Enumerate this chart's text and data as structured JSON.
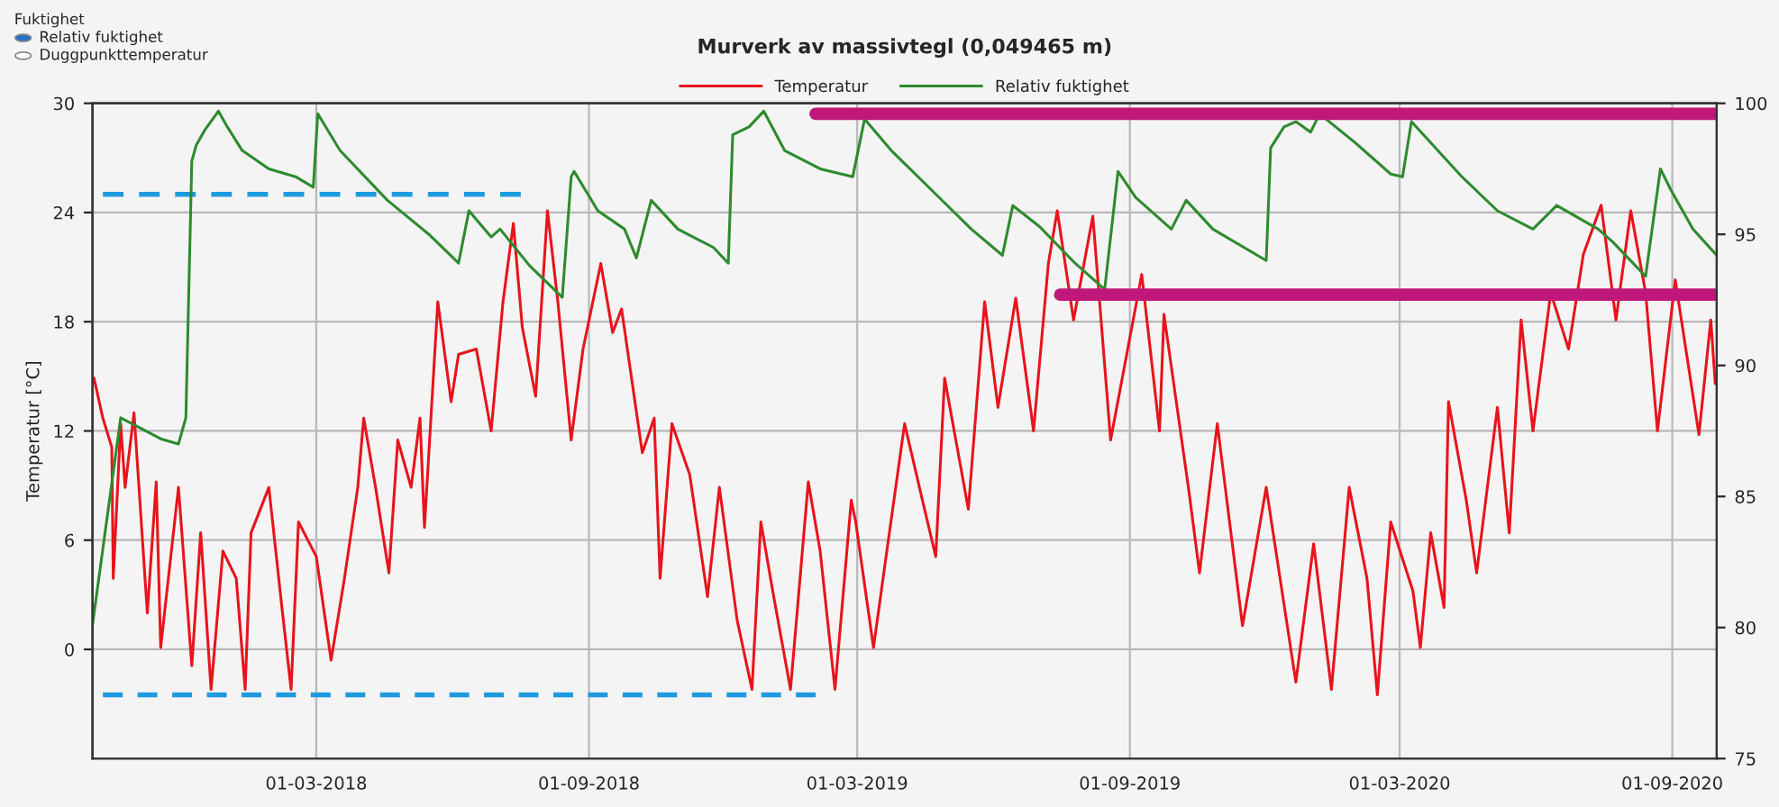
{
  "chart_data": {
    "type": "line",
    "title": "Murverk av massivtegl (0,049465 m)",
    "ylabel": "Temperatur [°C]",
    "annotations": [
      "Fuktighet",
      "Relativ fuktighet",
      "Duggpunkttemperatur"
    ],
    "xlim": [
      "2017-10-01",
      "2020-10-01"
    ],
    "xticks": [
      {
        "value": "2018-03-01",
        "label": "01-03-2018"
      },
      {
        "value": "2018-09-01",
        "label": "01-09-2018"
      },
      {
        "value": "2019-03-01",
        "label": "01-03-2019"
      },
      {
        "value": "2019-09-01",
        "label": "01-09-2019"
      },
      {
        "value": "2020-03-01",
        "label": "01-03-2020"
      },
      {
        "value": "2020-09-01",
        "label": "01-09-2020"
      }
    ],
    "ylim": [
      -6,
      30
    ],
    "yticks": [
      0,
      6,
      12,
      18,
      24,
      30
    ],
    "y2lim": [
      75,
      100
    ],
    "y2ticks": [
      75,
      80,
      85,
      90,
      95,
      100
    ],
    "grid": true,
    "legend": "top",
    "series": [
      {
        "name": "Temperatur",
        "color": "#e8141c",
        "x": [
          "2017-10-02",
          "2017-10-08",
          "2017-10-14",
          "2017-10-15",
          "2017-10-20",
          "2017-10-23",
          "2017-10-29",
          "2017-11-07",
          "2017-11-13",
          "2017-11-16",
          "2017-11-28",
          "2017-12-07",
          "2017-12-13",
          "2017-12-20",
          "2017-12-28",
          "2018-01-06",
          "2018-01-12",
          "2018-01-16",
          "2018-01-28",
          "2018-02-05",
          "2018-02-12",
          "2018-02-17",
          "2018-03-01",
          "2018-03-11",
          "2018-03-20",
          "2018-03-29",
          "2018-04-02",
          "2018-04-10",
          "2018-04-19",
          "2018-04-25",
          "2018-05-04",
          "2018-05-10",
          "2018-05-13",
          "2018-05-22",
          "2018-05-31",
          "2018-06-05",
          "2018-06-17",
          "2018-06-27",
          "2018-07-05",
          "2018-07-12",
          "2018-07-18",
          "2018-07-27",
          "2018-08-04",
          "2018-08-11",
          "2018-08-20",
          "2018-08-28",
          "2018-09-09",
          "2018-09-17",
          "2018-09-23",
          "2018-10-07",
          "2018-10-15",
          "2018-10-19",
          "2018-10-27",
          "2018-11-08",
          "2018-11-20",
          "2018-11-28",
          "2018-12-10",
          "2018-12-20",
          "2018-12-26",
          "2019-01-03",
          "2019-01-15",
          "2019-01-27",
          "2019-02-04",
          "2019-02-14",
          "2019-02-25",
          "2019-02-28",
          "2019-03-12",
          "2019-03-21",
          "2019-04-02",
          "2019-04-14",
          "2019-04-23",
          "2019-04-29",
          "2019-05-15",
          "2019-05-26",
          "2019-06-04",
          "2019-06-16",
          "2019-06-28",
          "2019-07-08",
          "2019-07-14",
          "2019-07-25",
          "2019-08-07",
          "2019-08-19",
          "2019-09-09",
          "2019-09-21",
          "2019-09-24",
          "2019-10-11",
          "2019-10-18",
          "2019-10-30",
          "2019-11-16",
          "2019-12-02",
          "2019-12-22",
          "2020-01-03",
          "2020-01-15",
          "2020-01-27",
          "2020-02-08",
          "2020-02-15",
          "2020-02-24",
          "2020-03-10",
          "2020-03-15",
          "2020-03-22",
          "2020-03-31",
          "2020-04-03",
          "2020-04-15",
          "2020-04-22",
          "2020-05-06",
          "2020-05-14",
          "2020-05-22",
          "2020-05-30",
          "2020-06-11",
          "2020-06-23",
          "2020-07-03",
          "2020-07-15",
          "2020-07-25",
          "2020-08-04",
          "2020-08-14",
          "2020-08-22",
          "2020-09-03",
          "2020-09-19",
          "2020-09-27",
          "2020-09-30"
        ],
        "values": [
          14.9,
          12.7,
          11.1,
          3.9,
          12.4,
          8.9,
          13.0,
          2.0,
          9.2,
          0.1,
          8.9,
          -0.9,
          6.4,
          -2.2,
          5.4,
          3.9,
          -2.2,
          6.4,
          8.9,
          2.9,
          -2.2,
          7.0,
          5.1,
          -0.6,
          3.9,
          8.9,
          12.7,
          8.9,
          4.2,
          11.5,
          8.9,
          12.7,
          6.7,
          19.1,
          13.6,
          16.2,
          16.5,
          12.0,
          19.1,
          23.4,
          17.7,
          13.9,
          24.1,
          19.1,
          11.5,
          16.5,
          21.2,
          17.4,
          18.7,
          10.8,
          12.7,
          3.9,
          12.4,
          9.6,
          2.9,
          8.9,
          1.6,
          -2.2,
          7.0,
          3.2,
          -2.2,
          9.2,
          5.4,
          -2.2,
          8.2,
          7.0,
          0.1,
          5.4,
          12.4,
          8.2,
          5.1,
          14.9,
          7.7,
          19.1,
          13.3,
          19.3,
          12.0,
          21.2,
          24.1,
          18.1,
          23.8,
          11.5,
          20.6,
          12.0,
          18.4,
          8.6,
          4.2,
          12.4,
          1.3,
          8.9,
          -1.8,
          5.8,
          -2.2,
          8.9,
          3.9,
          -2.5,
          7.0,
          3.2,
          0.1,
          6.4,
          2.3,
          13.6,
          8.2,
          4.2,
          13.3,
          6.4,
          18.1,
          12.0,
          19.6,
          16.5,
          21.7,
          24.4,
          18.1,
          24.1,
          19.6,
          12.0,
          20.3,
          11.8,
          18.1,
          14.6
        ]
      },
      {
        "name": "Relativ fuktighet",
        "color": "#2e8b2e",
        "axis": "y2",
        "x": [
          "2017-10-01",
          "2017-10-20",
          "2017-11-16",
          "2017-11-28",
          "2017-12-03",
          "2017-12-07",
          "2017-12-10",
          "2017-12-16",
          "2017-12-25",
          "2017-12-31",
          "2018-01-10",
          "2018-01-28",
          "2018-02-15",
          "2018-02-27",
          "2018-03-02",
          "2018-03-17",
          "2018-04-18",
          "2018-05-16",
          "2018-06-05",
          "2018-06-12",
          "2018-06-27",
          "2018-07-03",
          "2018-07-23",
          "2018-08-14",
          "2018-08-20",
          "2018-08-22",
          "2018-09-07",
          "2018-09-25",
          "2018-10-03",
          "2018-10-13",
          "2018-10-31",
          "2018-11-24",
          "2018-12-04",
          "2018-12-07",
          "2018-12-18",
          "2018-12-28",
          "2019-01-11",
          "2019-02-04",
          "2019-02-26",
          "2019-03-06",
          "2019-03-24",
          "2019-04-29",
          "2019-05-17",
          "2019-06-07",
          "2019-06-14",
          "2019-07-02",
          "2019-07-26",
          "2019-08-15",
          "2019-08-24",
          "2019-09-05",
          "2019-09-29",
          "2019-10-09",
          "2019-10-27",
          "2019-12-02",
          "2019-12-05",
          "2019-12-14",
          "2019-12-22",
          "2020-01-01",
          "2020-01-07",
          "2020-01-31",
          "2020-02-24",
          "2020-03-03",
          "2020-03-09",
          "2020-04-12",
          "2020-05-06",
          "2020-05-30",
          "2020-06-15",
          "2020-07-13",
          "2020-07-23",
          "2020-08-14",
          "2020-08-24",
          "2020-08-31",
          "2020-09-15",
          "2020-10-01"
        ],
        "values": [
          80.1,
          88.0,
          87.2,
          87.0,
          88.0,
          97.8,
          98.4,
          99.0,
          99.7,
          99.1,
          98.2,
          97.5,
          97.2,
          96.8,
          99.6,
          98.2,
          96.3,
          95.0,
          93.9,
          95.9,
          94.9,
          95.2,
          93.8,
          92.6,
          97.2,
          97.4,
          95.9,
          95.2,
          94.1,
          96.3,
          95.2,
          94.5,
          93.9,
          98.8,
          99.1,
          99.7,
          98.2,
          97.5,
          97.2,
          99.4,
          98.2,
          96.2,
          95.2,
          94.2,
          96.1,
          95.3,
          93.9,
          92.9,
          97.4,
          96.4,
          95.2,
          96.3,
          95.2,
          94.0,
          98.3,
          99.1,
          99.3,
          98.9,
          99.6,
          98.5,
          97.3,
          97.2,
          99.3,
          97.2,
          95.9,
          95.2,
          96.1,
          95.2,
          94.7,
          93.4,
          97.5,
          96.7,
          95.2,
          94.2
        ]
      },
      {
        "color": "#1e9be0",
        "line_style": "dashed",
        "x": [
          "2017-10-08",
          "2018-07-17"
        ],
        "values": [
          25,
          25
        ]
      },
      {
        "color": "#1e9be0",
        "line_style": "dashed",
        "x": [
          "2017-10-08",
          "2019-02-01"
        ],
        "values": [
          -2.5,
          -2.5
        ]
      },
      {
        "color": "#c0187a",
        "axis": "y2",
        "x": [
          "2019-02-01",
          "2020-10-01"
        ],
        "values": [
          99.6,
          99.6
        ]
      },
      {
        "color": "#c0187a",
        "axis": "y2",
        "x": [
          "2019-07-16",
          "2020-10-01"
        ],
        "values": [
          92.7,
          92.7
        ]
      }
    ]
  }
}
